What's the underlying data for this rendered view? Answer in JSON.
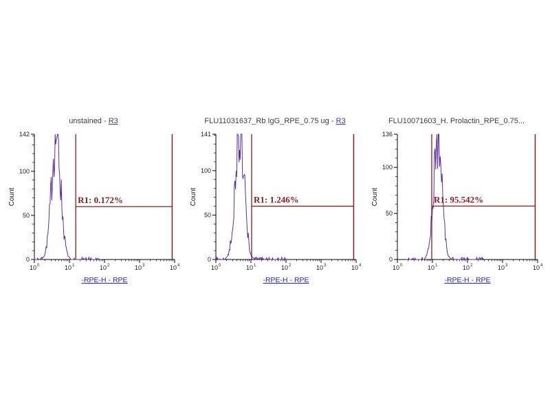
{
  "page": {
    "background": "#ffffff"
  },
  "colors": {
    "curve": "#5a2ca0",
    "gate": "#8b1a1a",
    "axis": "#000000",
    "tick_text": "#1a1a1a",
    "title_text": "#3d3d3d",
    "xlabel_link": "#2424c8"
  },
  "chart_data": [
    {
      "type": "area",
      "subtype": "flow-histogram",
      "title": {
        "prefix": "unstained - ",
        "link": "R3"
      },
      "ylabel": "Count",
      "xlabel": "-RPE-H - RPE",
      "ymax": 142,
      "yticks": [
        0,
        50,
        100,
        142
      ],
      "x_scale": "log10",
      "xlim_decades": [
        0,
        4
      ],
      "x_tick_base": "10",
      "x_tick_exponents": [
        0,
        1,
        2,
        3,
        4
      ],
      "peak": {
        "center_log10": 0.62,
        "sigma_log10": 0.13,
        "height": 142
      },
      "gate": {
        "name": "R1",
        "label": "R1: 0.172%",
        "percent": 0.172,
        "level_count": 60,
        "from_log10": 1.18,
        "to_log10": 3.93
      }
    },
    {
      "type": "area",
      "subtype": "flow-histogram",
      "title": {
        "prefix": "FLU11031637_Rb IgG_RPE_0.75 ug - ",
        "link": "R3"
      },
      "ylabel": "Count",
      "xlabel": "-RPE-H - RPE",
      "ymax": 141,
      "yticks": [
        0,
        50,
        100,
        141
      ],
      "x_scale": "log10",
      "xlim_decades": [
        0,
        4
      ],
      "x_tick_base": "10",
      "x_tick_exponents": [
        0,
        1,
        2,
        3,
        4
      ],
      "peak": {
        "center_log10": 0.68,
        "sigma_log10": 0.13,
        "height": 141
      },
      "gate": {
        "name": "R1",
        "label": "R1: 1.246%",
        "percent": 1.246,
        "level_count": 60,
        "from_log10": 1.02,
        "to_log10": 3.93
      }
    },
    {
      "type": "area",
      "subtype": "flow-histogram",
      "title": {
        "prefix": "FLU10071603_H. Prolactin_RPE_0.75...",
        "link": ""
      },
      "ylabel": "Count",
      "xlabel": "-RPE-H - RPE",
      "ymax": 136,
      "yticks": [
        0,
        50,
        100,
        136
      ],
      "x_scale": "log10",
      "xlim_decades": [
        0,
        4
      ],
      "x_tick_base": "10",
      "x_tick_exponents": [
        0,
        1,
        2,
        3,
        4
      ],
      "peak": {
        "center_log10": 1.15,
        "sigma_log10": 0.12,
        "height": 136
      },
      "gate": {
        "name": "R1",
        "label": "R1: 95.542%",
        "percent": 95.542,
        "level_count": 58,
        "from_log10": 0.98,
        "to_log10": 3.93
      }
    }
  ]
}
